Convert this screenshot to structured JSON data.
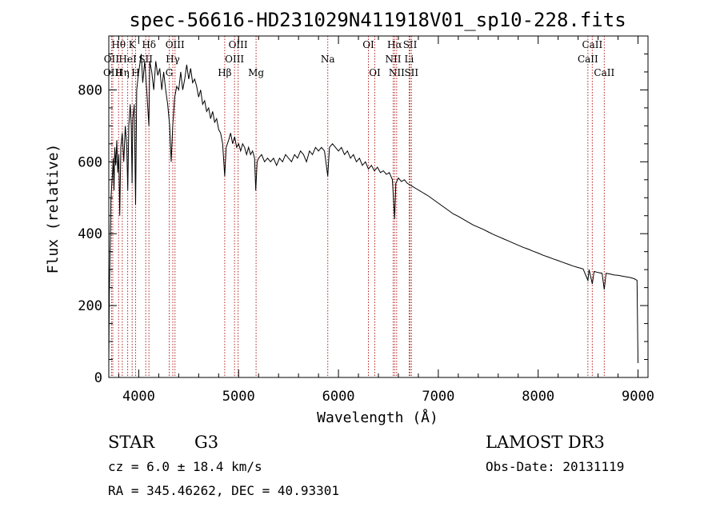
{
  "chart_data": {
    "type": "line",
    "title": "spec-56616-HD231029N411918V01_sp10-228.fits",
    "xlabel": "Wavelength (Å)",
    "ylabel": "Flux (relative)",
    "xlim": [
      3700,
      9100
    ],
    "ylim": [
      0,
      950
    ],
    "xticks": [
      4000,
      5000,
      6000,
      7000,
      8000,
      9000
    ],
    "yticks": [
      0,
      200,
      400,
      600,
      800
    ],
    "series": [
      {
        "values": [
          [
            3700,
            40
          ],
          [
            3705,
            230
          ],
          [
            3712,
            340
          ],
          [
            3722,
            500
          ],
          [
            3735,
            560
          ],
          [
            3745,
            610
          ],
          [
            3752,
            520
          ],
          [
            3760,
            640
          ],
          [
            3770,
            590
          ],
          [
            3780,
            660
          ],
          [
            3790,
            570
          ],
          [
            3800,
            620
          ],
          [
            3810,
            450
          ],
          [
            3820,
            640
          ],
          [
            3835,
            680
          ],
          [
            3850,
            600
          ],
          [
            3865,
            700
          ],
          [
            3880,
            640
          ],
          [
            3890,
            520
          ],
          [
            3900,
            700
          ],
          [
            3915,
            760
          ],
          [
            3925,
            700
          ],
          [
            3933,
            540
          ],
          [
            3940,
            720
          ],
          [
            3955,
            760
          ],
          [
            3968,
            480
          ],
          [
            3980,
            800
          ],
          [
            3995,
            840
          ],
          [
            4010,
            870
          ],
          [
            4025,
            900
          ],
          [
            4040,
            820
          ],
          [
            4060,
            880
          ],
          [
            4080,
            800
          ],
          [
            4101,
            700
          ],
          [
            4110,
            880
          ],
          [
            4130,
            850
          ],
          [
            4150,
            800
          ],
          [
            4170,
            880
          ],
          [
            4190,
            840
          ],
          [
            4210,
            860
          ],
          [
            4230,
            800
          ],
          [
            4250,
            850
          ],
          [
            4270,
            800
          ],
          [
            4290,
            760
          ],
          [
            4310,
            700
          ],
          [
            4325,
            600
          ],
          [
            4340,
            700
          ],
          [
            4360,
            780
          ],
          [
            4380,
            810
          ],
          [
            4400,
            800
          ],
          [
            4420,
            850
          ],
          [
            4440,
            800
          ],
          [
            4460,
            830
          ],
          [
            4480,
            870
          ],
          [
            4500,
            830
          ],
          [
            4520,
            860
          ],
          [
            4540,
            820
          ],
          [
            4560,
            830
          ],
          [
            4580,
            810
          ],
          [
            4600,
            780
          ],
          [
            4620,
            800
          ],
          [
            4640,
            760
          ],
          [
            4660,
            770
          ],
          [
            4680,
            740
          ],
          [
            4700,
            750
          ],
          [
            4720,
            720
          ],
          [
            4740,
            740
          ],
          [
            4760,
            710
          ],
          [
            4780,
            720
          ],
          [
            4800,
            690
          ],
          [
            4820,
            680
          ],
          [
            4840,
            650
          ],
          [
            4861,
            560
          ],
          [
            4875,
            640
          ],
          [
            4900,
            660
          ],
          [
            4920,
            680
          ],
          [
            4940,
            650
          ],
          [
            4960,
            670
          ],
          [
            4980,
            640
          ],
          [
            5000,
            650
          ],
          [
            5020,
            630
          ],
          [
            5040,
            650
          ],
          [
            5060,
            640
          ],
          [
            5080,
            620
          ],
          [
            5100,
            640
          ],
          [
            5120,
            620
          ],
          [
            5140,
            630
          ],
          [
            5160,
            610
          ],
          [
            5172,
            520
          ],
          [
            5185,
            600
          ],
          [
            5200,
            610
          ],
          [
            5230,
            620
          ],
          [
            5260,
            600
          ],
          [
            5290,
            610
          ],
          [
            5320,
            600
          ],
          [
            5350,
            610
          ],
          [
            5380,
            590
          ],
          [
            5410,
            610
          ],
          [
            5440,
            600
          ],
          [
            5470,
            620
          ],
          [
            5500,
            610
          ],
          [
            5530,
            600
          ],
          [
            5560,
            620
          ],
          [
            5590,
            610
          ],
          [
            5620,
            630
          ],
          [
            5650,
            620
          ],
          [
            5680,
            600
          ],
          [
            5710,
            630
          ],
          [
            5740,
            620
          ],
          [
            5770,
            640
          ],
          [
            5800,
            630
          ],
          [
            5830,
            640
          ],
          [
            5860,
            630
          ],
          [
            5893,
            560
          ],
          [
            5910,
            640
          ],
          [
            5940,
            650
          ],
          [
            5970,
            640
          ],
          [
            6000,
            630
          ],
          [
            6030,
            640
          ],
          [
            6060,
            620
          ],
          [
            6090,
            630
          ],
          [
            6120,
            610
          ],
          [
            6150,
            620
          ],
          [
            6180,
            600
          ],
          [
            6210,
            610
          ],
          [
            6240,
            590
          ],
          [
            6270,
            600
          ],
          [
            6300,
            580
          ],
          [
            6330,
            590
          ],
          [
            6360,
            575
          ],
          [
            6390,
            585
          ],
          [
            6420,
            570
          ],
          [
            6450,
            575
          ],
          [
            6480,
            565
          ],
          [
            6510,
            570
          ],
          [
            6540,
            550
          ],
          [
            6563,
            440
          ],
          [
            6575,
            540
          ],
          [
            6600,
            555
          ],
          [
            6630,
            545
          ],
          [
            6660,
            550
          ],
          [
            6690,
            540
          ],
          [
            6720,
            535
          ],
          [
            6750,
            530
          ],
          [
            6780,
            525
          ],
          [
            6810,
            520
          ],
          [
            6840,
            515
          ],
          [
            6870,
            510
          ],
          [
            6900,
            505
          ],
          [
            6950,
            495
          ],
          [
            7000,
            485
          ],
          [
            7050,
            475
          ],
          [
            7100,
            465
          ],
          [
            7150,
            455
          ],
          [
            7200,
            448
          ],
          [
            7250,
            440
          ],
          [
            7300,
            432
          ],
          [
            7350,
            424
          ],
          [
            7400,
            418
          ],
          [
            7450,
            412
          ],
          [
            7500,
            405
          ],
          [
            7550,
            398
          ],
          [
            7600,
            392
          ],
          [
            7650,
            386
          ],
          [
            7700,
            380
          ],
          [
            7750,
            374
          ],
          [
            7800,
            368
          ],
          [
            7850,
            362
          ],
          [
            7900,
            357
          ],
          [
            7950,
            351
          ],
          [
            8000,
            346
          ],
          [
            8050,
            340
          ],
          [
            8100,
            335
          ],
          [
            8150,
            330
          ],
          [
            8200,
            325
          ],
          [
            8250,
            320
          ],
          [
            8300,
            315
          ],
          [
            8350,
            310
          ],
          [
            8400,
            306
          ],
          [
            8450,
            302
          ],
          [
            8498,
            270
          ],
          [
            8510,
            300
          ],
          [
            8542,
            260
          ],
          [
            8560,
            295
          ],
          [
            8600,
            292
          ],
          [
            8640,
            290
          ],
          [
            8662,
            245
          ],
          [
            8680,
            290
          ],
          [
            8720,
            288
          ],
          [
            8760,
            285
          ],
          [
            8800,
            284
          ],
          [
            8840,
            282
          ],
          [
            8880,
            280
          ],
          [
            8920,
            278
          ],
          [
            8960,
            275
          ],
          [
            8990,
            270
          ],
          [
            9000,
            40
          ]
        ]
      }
    ],
    "line_markers": [
      {
        "label": "Hθ",
        "x": 3798,
        "row": 1
      },
      {
        "label": "OII",
        "x": 3727,
        "row": 2
      },
      {
        "label": "OIII",
        "x": 3740,
        "row": 3
      },
      {
        "label": "K",
        "x": 3934,
        "row": 1
      },
      {
        "label": "HeI",
        "x": 3889,
        "row": 2
      },
      {
        "label": "Hη",
        "x": 3835,
        "row": 3
      },
      {
        "label": "H",
        "x": 3968,
        "row": 3
      },
      {
        "label": "Hδ",
        "x": 4102,
        "row": 1
      },
      {
        "label": "SII",
        "x": 4070,
        "row": 2
      },
      {
        "label": "OIII",
        "x": 4363,
        "row": 1
      },
      {
        "label": "Hγ",
        "x": 4341,
        "row": 2
      },
      {
        "label": "G",
        "x": 4305,
        "row": 3
      },
      {
        "label": "OIII",
        "x": 4995,
        "row": 1
      },
      {
        "label": "OIII",
        "x": 4959,
        "row": 2
      },
      {
        "label": "Hβ",
        "x": 4861,
        "row": 3
      },
      {
        "label": "Mg",
        "x": 5175,
        "row": 3
      },
      {
        "label": "Na",
        "x": 5893,
        "row": 2
      },
      {
        "label": "OI",
        "x": 6300,
        "row": 1
      },
      {
        "label": "OI",
        "x": 6364,
        "row": 3
      },
      {
        "label": "Hα",
        "x": 6563,
        "row": 1
      },
      {
        "label": "SII",
        "x": 6717,
        "row": 1
      },
      {
        "label": "NII",
        "x": 6548,
        "row": 2
      },
      {
        "label": "Li",
        "x": 6708,
        "row": 2
      },
      {
        "label": "NII",
        "x": 6583,
        "row": 3
      },
      {
        "label": "SII",
        "x": 6731,
        "row": 3
      },
      {
        "label": "CaII",
        "x": 8542,
        "row": 1
      },
      {
        "label": "CaII",
        "x": 8498,
        "row": 2
      },
      {
        "label": "CaII",
        "x": 8662,
        "row": 3
      }
    ],
    "grid": false,
    "legend": "none"
  },
  "info": {
    "object_class": "STAR",
    "subclass": "G3",
    "survey": "LAMOST DR3",
    "cz": "cz = 6.0 ± 18.4 km/s",
    "obs_date": "Obs-Date: 20131119",
    "coords": "RA = 345.46262, DEC =  40.93301"
  },
  "colors": {
    "spectrum": "#000000",
    "marker_line": "#b22222",
    "axes": "#000000"
  }
}
